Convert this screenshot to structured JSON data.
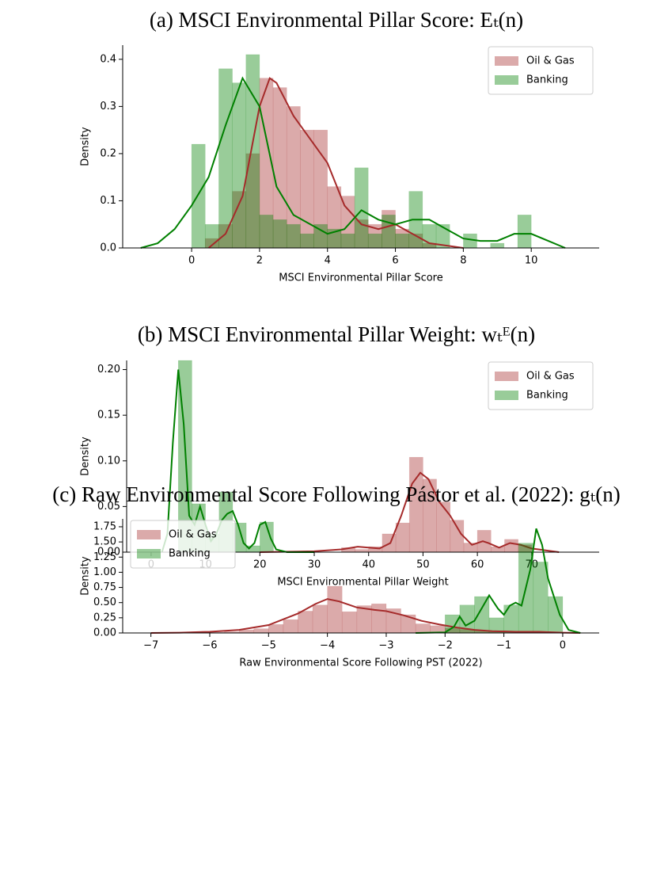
{
  "chart_data": [
    {
      "type": "histogram",
      "title": "(a) MSCI Environmental Pillar Score: Eₜ(n)",
      "xlabel": "MSCI Environmental Pillar Score",
      "ylabel": "Density",
      "bins": [
        0,
        0.4,
        0.8,
        1.2,
        1.6,
        2,
        2.4,
        2.8,
        3.2,
        3.6,
        4,
        4.4,
        4.8,
        5.2,
        5.6,
        6,
        6.4,
        6.8,
        7.2,
        7.6,
        8,
        8.4,
        8.8,
        9.2,
        9.6,
        10
      ],
      "series": [
        {
          "name": "Oil & Gas",
          "color": "#a52a2a",
          "values": [
            0,
            0.02,
            0.05,
            0.12,
            0.2,
            0.36,
            0.34,
            0.3,
            0.25,
            0.25,
            0.13,
            0.11,
            0.06,
            0.05,
            0.08,
            0.04,
            0.03,
            0.01,
            0,
            0,
            0,
            0,
            0,
            0,
            0
          ],
          "kde_x": [
            0.5,
            1,
            1.5,
            2,
            2.3,
            2.5,
            3,
            3.5,
            4,
            4.5,
            5,
            5.5,
            6,
            6.5,
            7,
            7.5,
            8
          ],
          "kde_values": [
            0,
            0.03,
            0.11,
            0.3,
            0.36,
            0.35,
            0.28,
            0.23,
            0.18,
            0.09,
            0.05,
            0.04,
            0.05,
            0.03,
            0.01,
            0.005,
            0
          ]
        },
        {
          "name": "Banking",
          "color": "#008000",
          "values": [
            0.22,
            0.05,
            0.38,
            0.35,
            0.41,
            0.07,
            0.06,
            0.05,
            0.03,
            0.05,
            0.04,
            0.03,
            0.17,
            0.03,
            0.07,
            0.03,
            0.12,
            0.05,
            0.05,
            0,
            0.03,
            0,
            0.01,
            0,
            0.07
          ],
          "kde_x": [
            -1.5,
            -1,
            -0.5,
            0,
            0.5,
            1,
            1.5,
            2,
            2.5,
            3,
            3.5,
            4,
            4.5,
            5,
            5.5,
            6,
            6.5,
            7,
            7.5,
            8,
            8.5,
            9,
            9.5,
            10,
            10.5,
            11
          ],
          "kde_values": [
            0,
            0.01,
            0.04,
            0.09,
            0.15,
            0.26,
            0.36,
            0.3,
            0.13,
            0.07,
            0.05,
            0.03,
            0.04,
            0.08,
            0.06,
            0.05,
            0.06,
            0.06,
            0.04,
            0.02,
            0.015,
            0.015,
            0.03,
            0.03,
            0.015,
            0
          ]
        }
      ],
      "hist_alpha": 0.4,
      "legend": "upper right",
      "xlim": [
        -2.03,
        12.0
      ],
      "ylim": [
        0,
        0.43
      ],
      "xticks": [
        0,
        2,
        4,
        6,
        8,
        10
      ],
      "yticks": [
        {
          "value": 0,
          "label": "0.0"
        },
        0.1,
        0.2,
        0.3,
        0.4
      ]
    },
    {
      "type": "histogram",
      "title": "(b) MSCI Environmental Pillar Weight: wₜᴱ(n)",
      "xlabel": "MSCI Environmental Pillar Weight",
      "ylabel": "Density",
      "bins": [
        0,
        2.5,
        5,
        7.5,
        10,
        12.5,
        15,
        17.5,
        20,
        22.5,
        25,
        27.5,
        30,
        32.5,
        35,
        37.5,
        40,
        42.5,
        45,
        47.5,
        50,
        52.5,
        55,
        57.5,
        60,
        62.5,
        65,
        67.5,
        70
      ],
      "series": [
        {
          "name": "Oil & Gas",
          "color": "#a52a2a",
          "values": [
            0,
            0,
            0,
            0,
            0,
            0,
            0,
            0,
            0,
            0,
            0,
            0,
            0,
            0,
            0.005,
            0.003,
            0.006,
            0.02,
            0.032,
            0.104,
            0.08,
            0.055,
            0.035,
            0.01,
            0.024,
            0.006,
            0.014,
            0.008
          ],
          "kde_x": [
            20,
            30,
            35,
            38,
            42,
            44,
            46,
            48,
            49.5,
            51,
            53,
            55,
            57,
            59,
            61,
            62,
            64,
            66,
            68,
            70,
            75
          ],
          "kde_values": [
            0,
            0.001,
            0.003,
            0.006,
            0.004,
            0.01,
            0.04,
            0.075,
            0.087,
            0.08,
            0.055,
            0.04,
            0.02,
            0.008,
            0.012,
            0.01,
            0.005,
            0.01,
            0.008,
            0.004,
            0
          ]
        },
        {
          "name": "Banking",
          "color": "#008000",
          "values": [
            0,
            0,
            0.21,
            0.053,
            0.02,
            0.066,
            0.032,
            0.007,
            0.033,
            0,
            0,
            0,
            0,
            0,
            0,
            0,
            0,
            0,
            0,
            0,
            0,
            0,
            0,
            0,
            0,
            0,
            0,
            0
          ],
          "kde_x": [
            2,
            3,
            4,
            5,
            6,
            7,
            8,
            9,
            10,
            11,
            12,
            13,
            14,
            15,
            16,
            17,
            18,
            19,
            20,
            21,
            22,
            23,
            25,
            30
          ],
          "kde_values": [
            0,
            0.02,
            0.12,
            0.2,
            0.14,
            0.04,
            0.03,
            0.05,
            0.03,
            0.012,
            0.02,
            0.035,
            0.042,
            0.045,
            0.03,
            0.01,
            0.004,
            0.01,
            0.03,
            0.033,
            0.015,
            0.003,
            0,
            0
          ]
        }
      ],
      "hist_alpha": 0.4,
      "legend": "upper right",
      "xlim": [
        -4.5,
        82.4
      ],
      "ylim": [
        0,
        0.21
      ],
      "xticks": [
        0,
        10,
        20,
        30,
        40,
        50,
        60,
        70
      ],
      "yticks": [
        {
          "value": 0,
          "label": "0.00"
        },
        0.05,
        {
          "value": 0.1,
          "label": "0.10"
        },
        0.15,
        {
          "value": 0.2,
          "label": "0.20"
        }
      ]
    },
    {
      "type": "histogram",
      "title": "(c) Raw Environmental Score Following Pástor et al. (2022): gₜ(n)",
      "xlabel": "Raw Environmental Score Following PST (2022)",
      "ylabel": "Density",
      "bins": [
        -6.25,
        -6,
        -5.75,
        -5.5,
        -5.25,
        -5,
        -4.75,
        -4.5,
        -4.25,
        -4,
        -3.75,
        -3.5,
        -3.25,
        -3,
        -2.75,
        -2.5,
        -2.25,
        -2,
        -1.75,
        -1.5,
        -1.25,
        -1,
        -0.75,
        -0.5,
        -0.25,
        0
      ],
      "series": [
        {
          "name": "Oil & Gas",
          "color": "#a52a2a",
          "values": [
            0.01,
            0.01,
            0.02,
            0.05,
            0.07,
            0.14,
            0.22,
            0.36,
            0.46,
            0.77,
            0.35,
            0.45,
            0.48,
            0.4,
            0.3,
            0.15,
            0.12,
            0.08,
            0.06,
            0.04,
            0.03,
            0.02,
            0.02,
            0.01,
            0
          ],
          "kde_x": [
            -7,
            -6.5,
            -6,
            -5.5,
            -5,
            -4.5,
            -4.2,
            -4,
            -3.8,
            -3.5,
            -3.2,
            -3,
            -2.7,
            -2.4,
            -2.1,
            -1.8,
            -1.5,
            -1.2,
            -0.8,
            -0.4,
            0,
            0.3
          ],
          "kde_values": [
            0,
            0.005,
            0.02,
            0.05,
            0.13,
            0.32,
            0.48,
            0.56,
            0.52,
            0.42,
            0.38,
            0.36,
            0.29,
            0.2,
            0.14,
            0.09,
            0.05,
            0.03,
            0.02,
            0.02,
            0.005,
            0
          ]
        },
        {
          "name": "Banking",
          "color": "#008000",
          "values": [
            0,
            0,
            0,
            0,
            0,
            0,
            0,
            0,
            0,
            0,
            0,
            0,
            0,
            0,
            0,
            0,
            0,
            0.3,
            0.46,
            0.6,
            0.25,
            0.46,
            1.48,
            1.17,
            0.6
          ],
          "kde_x": [
            -2.5,
            -2,
            -1.85,
            -1.75,
            -1.65,
            -1.5,
            -1.35,
            -1.25,
            -1.1,
            -1,
            -0.9,
            -0.8,
            -0.7,
            -0.55,
            -0.45,
            -0.35,
            -0.25,
            -0.15,
            -0.05,
            0.1,
            0.3
          ],
          "kde_values": [
            0,
            0.01,
            0.1,
            0.27,
            0.12,
            0.2,
            0.45,
            0.62,
            0.4,
            0.3,
            0.45,
            0.5,
            0.45,
            1.05,
            1.72,
            1.45,
            0.9,
            0.6,
            0.3,
            0.05,
            0
          ]
        }
      ],
      "hist_alpha": 0.4,
      "legend": "upper left",
      "xlim": [
        -7.48,
        0.62
      ],
      "ylim": [
        0,
        1.88
      ],
      "xticks": [
        {
          "value": -7,
          "label": "−7"
        },
        {
          "value": -6,
          "label": "−6"
        },
        {
          "value": -5,
          "label": "−5"
        },
        {
          "value": -4,
          "label": "−4"
        },
        {
          "value": -3,
          "label": "−3"
        },
        {
          "value": -2,
          "label": "−2"
        },
        {
          "value": -1,
          "label": "−1"
        },
        0
      ],
      "yticks": [
        {
          "value": 0,
          "label": "0.00"
        },
        0.25,
        {
          "value": 0.5,
          "label": "0.50"
        },
        0.75,
        {
          "value": 1,
          "label": "1.00"
        },
        1.25,
        {
          "value": 1.5,
          "label": "1.50"
        },
        1.75
      ]
    }
  ]
}
